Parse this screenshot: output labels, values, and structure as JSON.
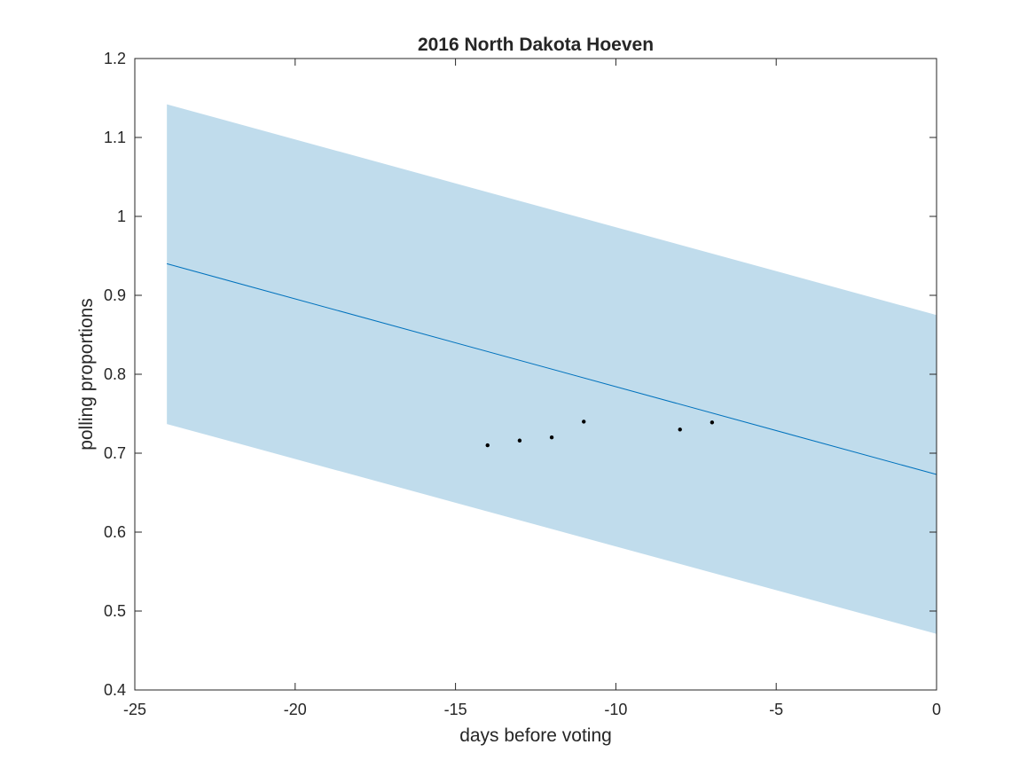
{
  "chart_data": {
    "type": "line",
    "title": "2016 North Dakota Hoeven",
    "xlabel": "days before voting",
    "ylabel": "polling proportions",
    "xlim": [
      -25,
      0
    ],
    "ylim": [
      0.4,
      1.2
    ],
    "xticks": [
      -25,
      -20,
      -15,
      -10,
      -5,
      0
    ],
    "xtick_labels": [
      "-25",
      "-20",
      "-15",
      "-10",
      "-5",
      "0"
    ],
    "yticks": [
      0.4,
      0.5,
      0.6,
      0.7,
      0.8,
      0.9,
      1,
      1.1,
      1.2
    ],
    "ytick_labels": [
      "0.4",
      "0.5",
      "0.6",
      "0.7",
      "0.8",
      "0.9",
      "1",
      "1.1",
      "1.2"
    ],
    "grid": false,
    "fit_line": {
      "x": [
        -24,
        0
      ],
      "y": [
        0.94,
        0.673
      ],
      "color": "#0072BD"
    },
    "confidence_band": {
      "x": [
        -24,
        0
      ],
      "upper": [
        1.142,
        0.875
      ],
      "lower": [
        0.737,
        0.471
      ],
      "color": "#c0dcec"
    },
    "points": {
      "x": [
        -14,
        -13,
        -12,
        -11,
        -8,
        -7
      ],
      "y": [
        0.71,
        0.716,
        0.72,
        0.74,
        0.73,
        0.739
      ],
      "color": "#000000"
    }
  }
}
